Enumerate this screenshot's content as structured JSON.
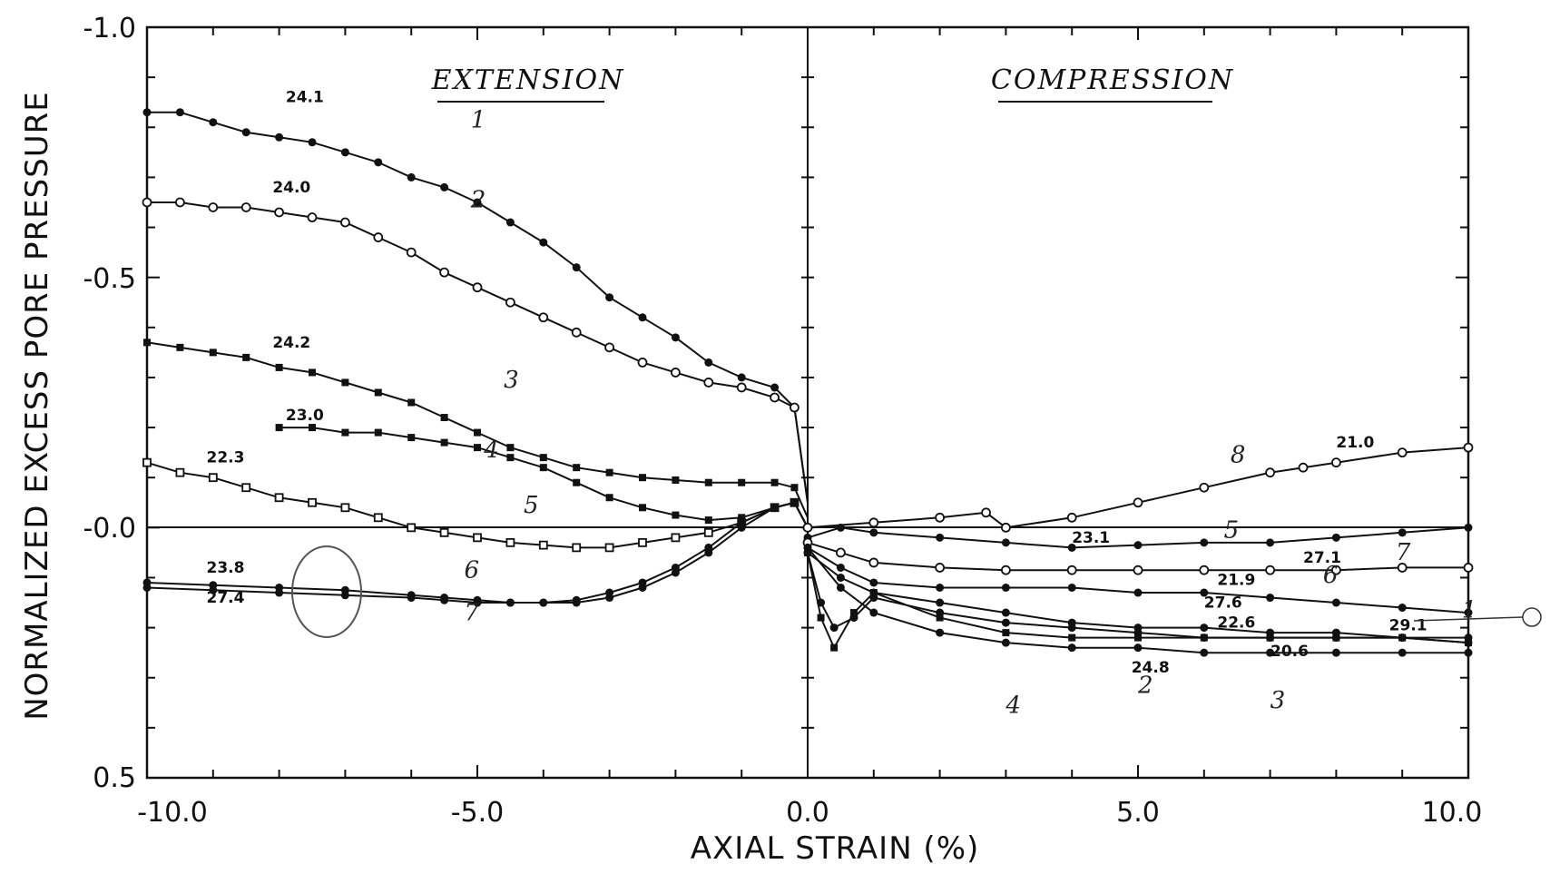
{
  "chart_data": {
    "type": "line",
    "title": "",
    "xlabel": "AXIAL STRAIN (%)",
    "ylabel": "NORMALIZED EXCESS PORE PRESSURE",
    "xlim": [
      -10,
      10
    ],
    "ylim": [
      -1.0,
      0.5
    ],
    "y_inverted": true,
    "x_ticks": [
      -10,
      -5,
      0,
      5,
      10
    ],
    "x_tick_labels": [
      "-10.0",
      "-5.0",
      "0.0",
      "5.0",
      "10.0"
    ],
    "y_ticks": [
      -1.0,
      -0.5,
      0.0,
      0.5
    ],
    "y_tick_labels": [
      "-1.0",
      "-0.5",
      "-0.0",
      "0.5"
    ],
    "regions": [
      "EXTENSION",
      "COMPRESSION"
    ],
    "series": [
      {
        "name": "1",
        "curve_label": "1",
        "data_label": "24.1",
        "marker": "dot",
        "x": [
          -10,
          -9.5,
          -9,
          -8.5,
          -8,
          -7.5,
          -7,
          -6.5,
          -6,
          -5.5,
          -5,
          -4.5,
          -4,
          -3.5,
          -3,
          -2.5,
          -2,
          -1.5,
          -1,
          -0.5,
          -0.2,
          0
        ],
        "y": [
          -0.83,
          -0.83,
          -0.81,
          -0.79,
          -0.78,
          -0.77,
          -0.75,
          -0.73,
          -0.7,
          -0.68,
          -0.65,
          -0.61,
          -0.57,
          -0.52,
          -0.46,
          -0.42,
          -0.38,
          -0.33,
          -0.3,
          -0.28,
          -0.24,
          -0.05
        ]
      },
      {
        "name": "2",
        "curve_label": "2",
        "data_label": "24.0",
        "marker": "circle",
        "x": [
          -10,
          -9.5,
          -9,
          -8.5,
          -8,
          -7.5,
          -7,
          -6.5,
          -6,
          -5.5,
          -5,
          -4.5,
          -4,
          -3.5,
          -3,
          -2.5,
          -2,
          -1.5,
          -1,
          -0.5,
          -0.2,
          0
        ],
        "y": [
          -0.65,
          -0.65,
          -0.64,
          -0.64,
          -0.63,
          -0.62,
          -0.61,
          -0.58,
          -0.55,
          -0.51,
          -0.48,
          -0.45,
          -0.42,
          -0.39,
          -0.36,
          -0.33,
          -0.31,
          -0.29,
          -0.28,
          -0.26,
          -0.24,
          -0.05
        ]
      },
      {
        "name": "3",
        "curve_label": "3",
        "data_label": "24.2",
        "marker": "square",
        "x": [
          -10,
          -9.5,
          -9,
          -8.5,
          -8,
          -7.5,
          -7,
          -6.5,
          -6,
          -5.5,
          -5,
          -4.5,
          -4,
          -3.5,
          -3,
          -2.5,
          -2,
          -1.5,
          -1,
          -0.5,
          -0.2,
          0
        ],
        "y": [
          -0.37,
          -0.36,
          -0.35,
          -0.34,
          -0.32,
          -0.31,
          -0.29,
          -0.27,
          -0.25,
          -0.22,
          -0.19,
          -0.16,
          -0.14,
          -0.12,
          -0.11,
          -0.1,
          -0.095,
          -0.09,
          -0.09,
          -0.09,
          -0.08,
          -0.02
        ]
      },
      {
        "name": "4",
        "curve_label": "4",
        "data_label": "23.0",
        "marker": "square",
        "x": [
          -8,
          -7.5,
          -7,
          -6.5,
          -6,
          -5.5,
          -5,
          -4.5,
          -4,
          -3.5,
          -3,
          -2.5,
          -2,
          -1.5,
          -1,
          -0.5,
          -0.2,
          0
        ],
        "y": [
          -0.2,
          -0.2,
          -0.19,
          -0.19,
          -0.18,
          -0.17,
          -0.16,
          -0.14,
          -0.12,
          -0.09,
          -0.06,
          -0.04,
          -0.025,
          -0.015,
          -0.02,
          -0.04,
          -0.05,
          0.0
        ]
      },
      {
        "name": "5",
        "curve_label": "5",
        "data_label": "22.3",
        "marker": "square-open",
        "x": [
          -10,
          -9.5,
          -9,
          -8.5,
          -8,
          -7.5,
          -7,
          -6.5,
          -6,
          -5.5,
          -5,
          -4.5,
          -4,
          -3.5,
          -3,
          -2.5,
          -2,
          -1.5,
          -1,
          -0.5,
          -0.2,
          0
        ],
        "y": [
          -0.13,
          -0.11,
          -0.1,
          -0.08,
          -0.06,
          -0.05,
          -0.04,
          -0.02,
          0.0,
          0.01,
          0.02,
          0.03,
          0.035,
          0.04,
          0.04,
          0.03,
          0.02,
          0.01,
          -0.01,
          -0.04,
          -0.05,
          0.0
        ]
      },
      {
        "name": "6",
        "curve_label": "6",
        "data_label": "23.8",
        "marker": "dot",
        "x": [
          -10,
          -9,
          -8,
          -7,
          -6,
          -5.5,
          -5,
          -4.5,
          -4,
          -3.5,
          -3,
          -2.5,
          -2,
          -1.5,
          -1,
          -0.5,
          -0.2,
          0
        ],
        "y": [
          0.11,
          0.115,
          0.12,
          0.125,
          0.135,
          0.14,
          0.145,
          0.15,
          0.15,
          0.15,
          0.14,
          0.12,
          0.09,
          0.05,
          0.0,
          -0.04,
          -0.05,
          0.0
        ]
      },
      {
        "name": "7",
        "curve_label": "7",
        "data_label": "27.4",
        "marker": "dot",
        "x": [
          -10,
          -9,
          -8,
          -7,
          -6,
          -5.5,
          -5,
          -4.5,
          -4,
          -3.5,
          -3,
          -2.5,
          -2,
          -1.5,
          -1,
          -0.5,
          -0.2,
          0
        ],
        "y": [
          0.12,
          0.125,
          0.13,
          0.135,
          0.14,
          0.145,
          0.15,
          0.15,
          0.15,
          0.145,
          0.13,
          0.11,
          0.08,
          0.04,
          -0.01,
          -0.04,
          -0.05,
          0.0
        ]
      },
      {
        "name": "8",
        "curve_label": "8",
        "data_label": "21.0",
        "marker": "circle",
        "x": [
          0,
          1,
          2,
          2.7,
          3,
          4,
          5,
          6,
          7,
          7.5,
          8,
          9,
          10
        ],
        "y": [
          0.0,
          -0.01,
          -0.02,
          -0.03,
          0.0,
          -0.02,
          -0.05,
          -0.08,
          -0.11,
          -0.12,
          -0.13,
          -0.15,
          -0.16
        ]
      },
      {
        "name": "5c",
        "curve_label": "5",
        "data_label": "23.1",
        "marker": "dot",
        "x": [
          0,
          0.5,
          1,
          2,
          3,
          4,
          5,
          6,
          7,
          8,
          9,
          10
        ],
        "y": [
          0.02,
          0.0,
          0.01,
          0.02,
          0.03,
          0.04,
          0.035,
          0.03,
          0.03,
          0.02,
          0.01,
          0.0
        ]
      },
      {
        "name": "7c",
        "curve_label": "7",
        "data_label": "27.1",
        "marker": "circle",
        "x": [
          0,
          0.5,
          1,
          2,
          3,
          4,
          5,
          6,
          7,
          8,
          9,
          10
        ],
        "y": [
          0.03,
          0.05,
          0.07,
          0.08,
          0.085,
          0.085,
          0.085,
          0.085,
          0.085,
          0.085,
          0.08,
          0.08
        ]
      },
      {
        "name": "6c",
        "curve_label": "6",
        "data_label": "27.6",
        "marker": "dot",
        "x": [
          0,
          0.5,
          1,
          2,
          3,
          4,
          5,
          6,
          7,
          8,
          9,
          10
        ],
        "y": [
          0.04,
          0.08,
          0.11,
          0.12,
          0.12,
          0.12,
          0.13,
          0.13,
          0.14,
          0.15,
          0.16,
          0.17
        ]
      },
      {
        "name": "1c",
        "curve_label": "1",
        "data_label": "29.1",
        "marker": "dot",
        "x": [
          0,
          0.5,
          1,
          2,
          3,
          4,
          5,
          6,
          7,
          8,
          9,
          10
        ],
        "y": [
          0.05,
          0.1,
          0.13,
          0.15,
          0.17,
          0.19,
          0.2,
          0.2,
          0.21,
          0.21,
          0.22,
          0.23
        ]
      },
      {
        "name": "3c",
        "curve_label": "3",
        "data_label": "21.9",
        "marker": "dot",
        "x": [
          0,
          0.2,
          0.4,
          0.7,
          1,
          2,
          3,
          4,
          5,
          6,
          7,
          8,
          9,
          10
        ],
        "y": [
          0.05,
          0.15,
          0.2,
          0.18,
          0.14,
          0.17,
          0.19,
          0.2,
          0.21,
          0.22,
          0.22,
          0.22,
          0.22,
          0.22
        ]
      },
      {
        "name": "4c",
        "curve_label": "4",
        "data_label": "22.6",
        "marker": "square",
        "x": [
          0,
          0.2,
          0.4,
          0.7,
          1,
          2,
          3,
          4,
          5,
          6,
          7,
          8,
          9,
          10
        ],
        "y": [
          0.05,
          0.18,
          0.24,
          0.17,
          0.13,
          0.18,
          0.21,
          0.22,
          0.22,
          0.22,
          0.22,
          0.22,
          0.22,
          0.23
        ]
      },
      {
        "name": "2c",
        "curve_label": "2",
        "data_label": "24.8",
        "marker": "dot",
        "x": [
          0,
          0.5,
          1,
          2,
          3,
          4,
          5,
          6,
          7,
          8,
          9,
          10
        ],
        "y": [
          0.04,
          0.12,
          0.17,
          0.21,
          0.23,
          0.24,
          0.24,
          0.25,
          0.25,
          0.25,
          0.25,
          0.25
        ]
      }
    ],
    "extra_labels": [
      "20.6"
    ],
    "grid": false,
    "legend": "none"
  }
}
